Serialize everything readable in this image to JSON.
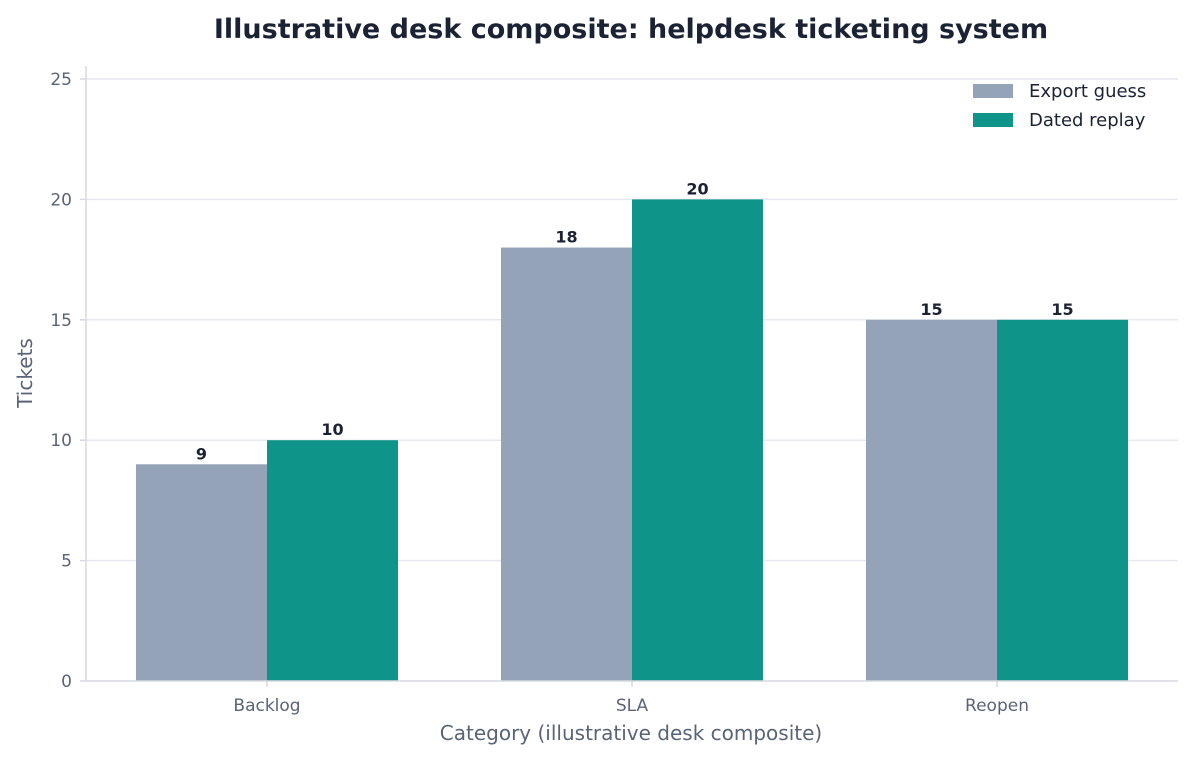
{
  "chart_data": {
    "type": "bar",
    "title": "Illustrative desk composite: helpdesk ticketing system",
    "xlabel": "Category (illustrative desk composite)",
    "ylabel": "Tickets",
    "categories": [
      "Backlog",
      "SLA",
      "Reopen"
    ],
    "series": [
      {
        "name": "Export guess",
        "values": [
          9,
          18,
          15
        ],
        "color": "#95a3b8"
      },
      {
        "name": "Dated replay",
        "values": [
          10,
          20,
          15
        ],
        "color": "#0e9488"
      }
    ],
    "ylim": [
      0,
      25
    ],
    "yticks": [
      0,
      5,
      10,
      15,
      20,
      25
    ],
    "grid": "horizontal",
    "legend": "top-right"
  }
}
